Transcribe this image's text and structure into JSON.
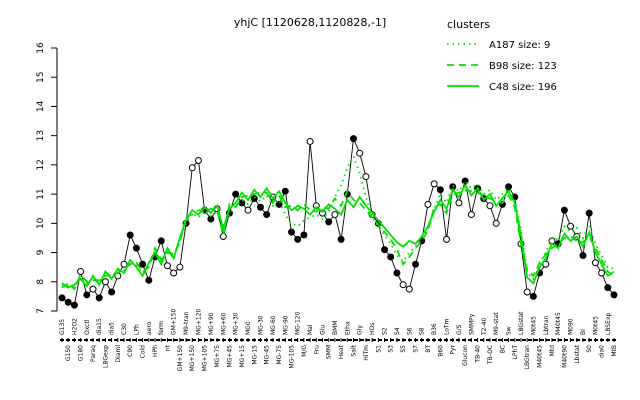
{
  "title": "yhjC [1120628,1120828,-1]",
  "legend": {
    "title": "clusters",
    "items": [
      {
        "label": "A187 size: 9",
        "style": "dotted"
      },
      {
        "label": "B98 size: 123",
        "style": "dashed"
      },
      {
        "label": "C48 size: 196",
        "style": "solid"
      }
    ]
  },
  "colors": {
    "cluster_green": "#00e100",
    "gene_black": "#000000",
    "open_marker_fill": "#ffffff"
  },
  "chart_data": {
    "type": "line",
    "title": "yhjC [1120628,1120828,-1]",
    "xlabel": "",
    "ylabel": "",
    "ylim": [
      7,
      16
    ],
    "yticks": [
      7,
      8,
      9,
      10,
      11,
      12,
      13,
      14,
      15,
      16
    ],
    "grid": false,
    "legend_position": "top-right",
    "categories": [
      "G135",
      "G150",
      "H2O2",
      "G180",
      "Oxctl",
      "Paraq",
      "dia15",
      "LBGexp",
      "dia5",
      "Diaml",
      "C30",
      "C90",
      "LPh",
      "Cold",
      "aero",
      "HPh",
      "ferm",
      "nt",
      "GM+150",
      "GM+150",
      "M9-tran",
      "MG+150",
      "MG+120",
      "MG+105",
      "MG+90",
      "MG+75",
      "MG+60",
      "MG+45",
      "MG+30",
      "MG+15",
      "MG0",
      "MG-15",
      "MG-30",
      "MG-45",
      "MG-60",
      "MG-75",
      "MG-90",
      "MG-105",
      "MG-120",
      "M/G",
      "Mal",
      "Fru",
      "Glu",
      "SMM",
      "BMM",
      "Heat",
      "Etha",
      "Salt",
      "Gly",
      "HiTm",
      "HOs",
      "S1",
      "S2",
      "S3",
      "S4",
      "S5",
      "S6",
      "S7",
      "S8",
      "BT",
      "B36",
      "B60",
      "LoTm",
      "Pyr",
      "G/S",
      "Glucon",
      "SMMPy",
      "TB-40",
      "T2-40",
      "TB-OC",
      "M9-stat",
      "BC",
      "Sw",
      "LPhT",
      "LBGstat",
      "LBGtran",
      "M0t45",
      "M40t45",
      "Lbtran",
      "Mtd",
      "M40t45",
      "M40t90",
      "M090",
      "Lbstat",
      "BI",
      "S0",
      "M0t45",
      "dia0",
      "LBSExp",
      "MtB"
    ],
    "series": [
      {
        "name": "gene expression",
        "color": "#000000",
        "style": "solid-markers",
        "values": [
          7.45,
          7.3,
          7.2,
          8.35,
          7.55,
          7.75,
          7.45,
          8.0,
          7.65,
          8.2,
          8.6,
          9.6,
          9.15,
          8.6,
          8.05,
          8.85,
          9.4,
          8.55,
          8.3,
          8.5,
          10.0,
          11.9,
          12.15,
          10.45,
          10.15,
          10.5,
          9.55,
          10.35,
          11.0,
          10.7,
          10.45,
          10.85,
          10.55,
          10.3,
          10.9,
          10.65,
          11.1,
          9.7,
          9.45,
          9.6,
          12.8,
          10.6,
          10.35,
          10.05,
          10.3,
          9.45,
          11.0,
          12.9,
          12.4,
          11.6,
          10.3,
          10.0,
          9.1,
          8.85,
          8.3,
          7.9,
          7.75,
          8.6,
          9.4,
          10.65,
          11.35,
          11.15,
          9.45,
          11.25,
          10.7,
          11.45,
          10.3,
          11.2,
          10.85,
          10.6,
          10.0,
          10.65,
          11.25,
          10.9,
          9.3,
          7.65,
          7.5,
          8.3,
          8.6,
          9.4,
          9.3,
          10.45,
          9.9,
          9.55,
          8.9,
          10.35,
          8.65,
          8.3,
          7.8,
          7.55
        ],
        "filled": [
          1,
          1,
          1,
          0,
          1,
          0,
          1,
          0,
          1,
          0,
          0,
          1,
          1,
          1,
          1,
          1,
          1,
          0,
          0,
          0,
          1,
          0,
          0,
          1,
          1,
          0,
          0,
          1,
          1,
          1,
          0,
          1,
          1,
          1,
          0,
          1,
          1,
          1,
          1,
          1,
          0,
          0,
          0,
          1,
          0,
          1,
          1,
          1,
          0,
          0,
          0,
          1,
          1,
          1,
          1,
          0,
          0,
          1,
          1,
          0,
          0,
          1,
          0,
          1,
          0,
          1,
          0,
          1,
          1,
          0,
          0,
          1,
          1,
          1,
          0,
          0,
          1,
          1,
          0,
          0,
          1,
          1,
          0,
          0,
          1,
          1,
          0,
          0,
          1,
          1
        ]
      },
      {
        "name": "A187 size: 9",
        "color": "#00e100",
        "style": "dotted",
        "values": [
          7.9,
          7.85,
          7.8,
          8.15,
          7.95,
          8.1,
          8.0,
          8.25,
          8.2,
          8.35,
          8.4,
          8.65,
          8.55,
          8.3,
          8.6,
          9.1,
          8.7,
          9.05,
          8.85,
          9.4,
          10.0,
          10.35,
          10.2,
          10.45,
          10.25,
          10.4,
          9.95,
          10.3,
          10.6,
          10.8,
          10.65,
          10.9,
          10.75,
          10.95,
          10.6,
          10.8,
          10.3,
          10.0,
          9.9,
          10.1,
          10.2,
          10.3,
          10.15,
          10.4,
          10.9,
          11.3,
          11.9,
          12.3,
          11.7,
          10.9,
          10.2,
          9.9,
          9.6,
          9.3,
          8.9,
          8.7,
          9.0,
          9.2,
          9.45,
          9.8,
          10.5,
          11.0,
          10.7,
          11.3,
          11.1,
          11.45,
          11.2,
          11.35,
          11.0,
          11.15,
          10.8,
          11.0,
          11.2,
          10.8,
          9.8,
          8.3,
          8.1,
          8.6,
          9.0,
          9.5,
          9.45,
          9.9,
          9.7,
          9.85,
          9.5,
          9.95,
          9.3,
          8.9,
          8.5,
          8.45
        ]
      },
      {
        "name": "B98 size: 123",
        "color": "#00e100",
        "style": "dashed",
        "values": [
          7.8,
          7.95,
          7.75,
          8.25,
          8.0,
          8.05,
          8.05,
          8.2,
          8.25,
          8.3,
          8.45,
          8.6,
          8.65,
          8.35,
          8.5,
          9.15,
          8.75,
          9.0,
          8.95,
          9.35,
          10.25,
          10.3,
          10.45,
          10.4,
          10.5,
          10.45,
          9.6,
          10.65,
          10.55,
          10.9,
          10.95,
          11.0,
          11.05,
          11.05,
          10.7,
          10.95,
          10.55,
          10.6,
          10.45,
          10.65,
          10.45,
          10.4,
          10.55,
          10.5,
          10.85,
          10.6,
          11.1,
          10.8,
          10.7,
          10.45,
          10.2,
          9.95,
          9.7,
          9.45,
          9.1,
          8.6,
          8.85,
          9.15,
          9.4,
          9.75,
          10.55,
          10.65,
          10.35,
          11.0,
          11.05,
          11.15,
          11.1,
          11.05,
          10.95,
          10.85,
          10.75,
          10.7,
          10.95,
          10.55,
          9.3,
          8.4,
          8.2,
          8.65,
          8.95,
          9.15,
          9.3,
          9.5,
          9.55,
          9.4,
          9.35,
          9.55,
          9.15,
          8.75,
          8.35,
          8.2
        ]
      },
      {
        "name": "C48 size: 196",
        "color": "#00e100",
        "style": "solid",
        "values": [
          7.95,
          7.8,
          7.9,
          8.1,
          7.85,
          8.2,
          7.9,
          8.35,
          8.1,
          8.45,
          8.3,
          8.75,
          8.5,
          8.2,
          8.65,
          9.0,
          8.6,
          9.15,
          8.8,
          9.5,
          10.1,
          10.45,
          10.3,
          10.55,
          10.35,
          10.6,
          9.8,
          10.5,
          10.7,
          11.05,
          10.8,
          11.15,
          10.9,
          11.2,
          10.85,
          11.1,
          10.7,
          10.45,
          10.6,
          10.5,
          10.3,
          10.55,
          10.4,
          10.65,
          10.5,
          10.3,
          10.8,
          10.55,
          10.9,
          10.6,
          10.35,
          10.1,
          9.85,
          9.6,
          9.35,
          9.2,
          9.4,
          9.3,
          9.55,
          9.9,
          10.4,
          10.8,
          10.5,
          11.15,
          10.9,
          11.3,
          10.95,
          11.2,
          10.8,
          11.0,
          10.6,
          10.85,
          11.1,
          10.7,
          9.6,
          8.15,
          7.95,
          8.5,
          8.8,
          9.3,
          9.15,
          9.65,
          9.4,
          9.55,
          9.2,
          9.7,
          9.0,
          8.6,
          8.2,
          8.35
        ]
      }
    ]
  }
}
